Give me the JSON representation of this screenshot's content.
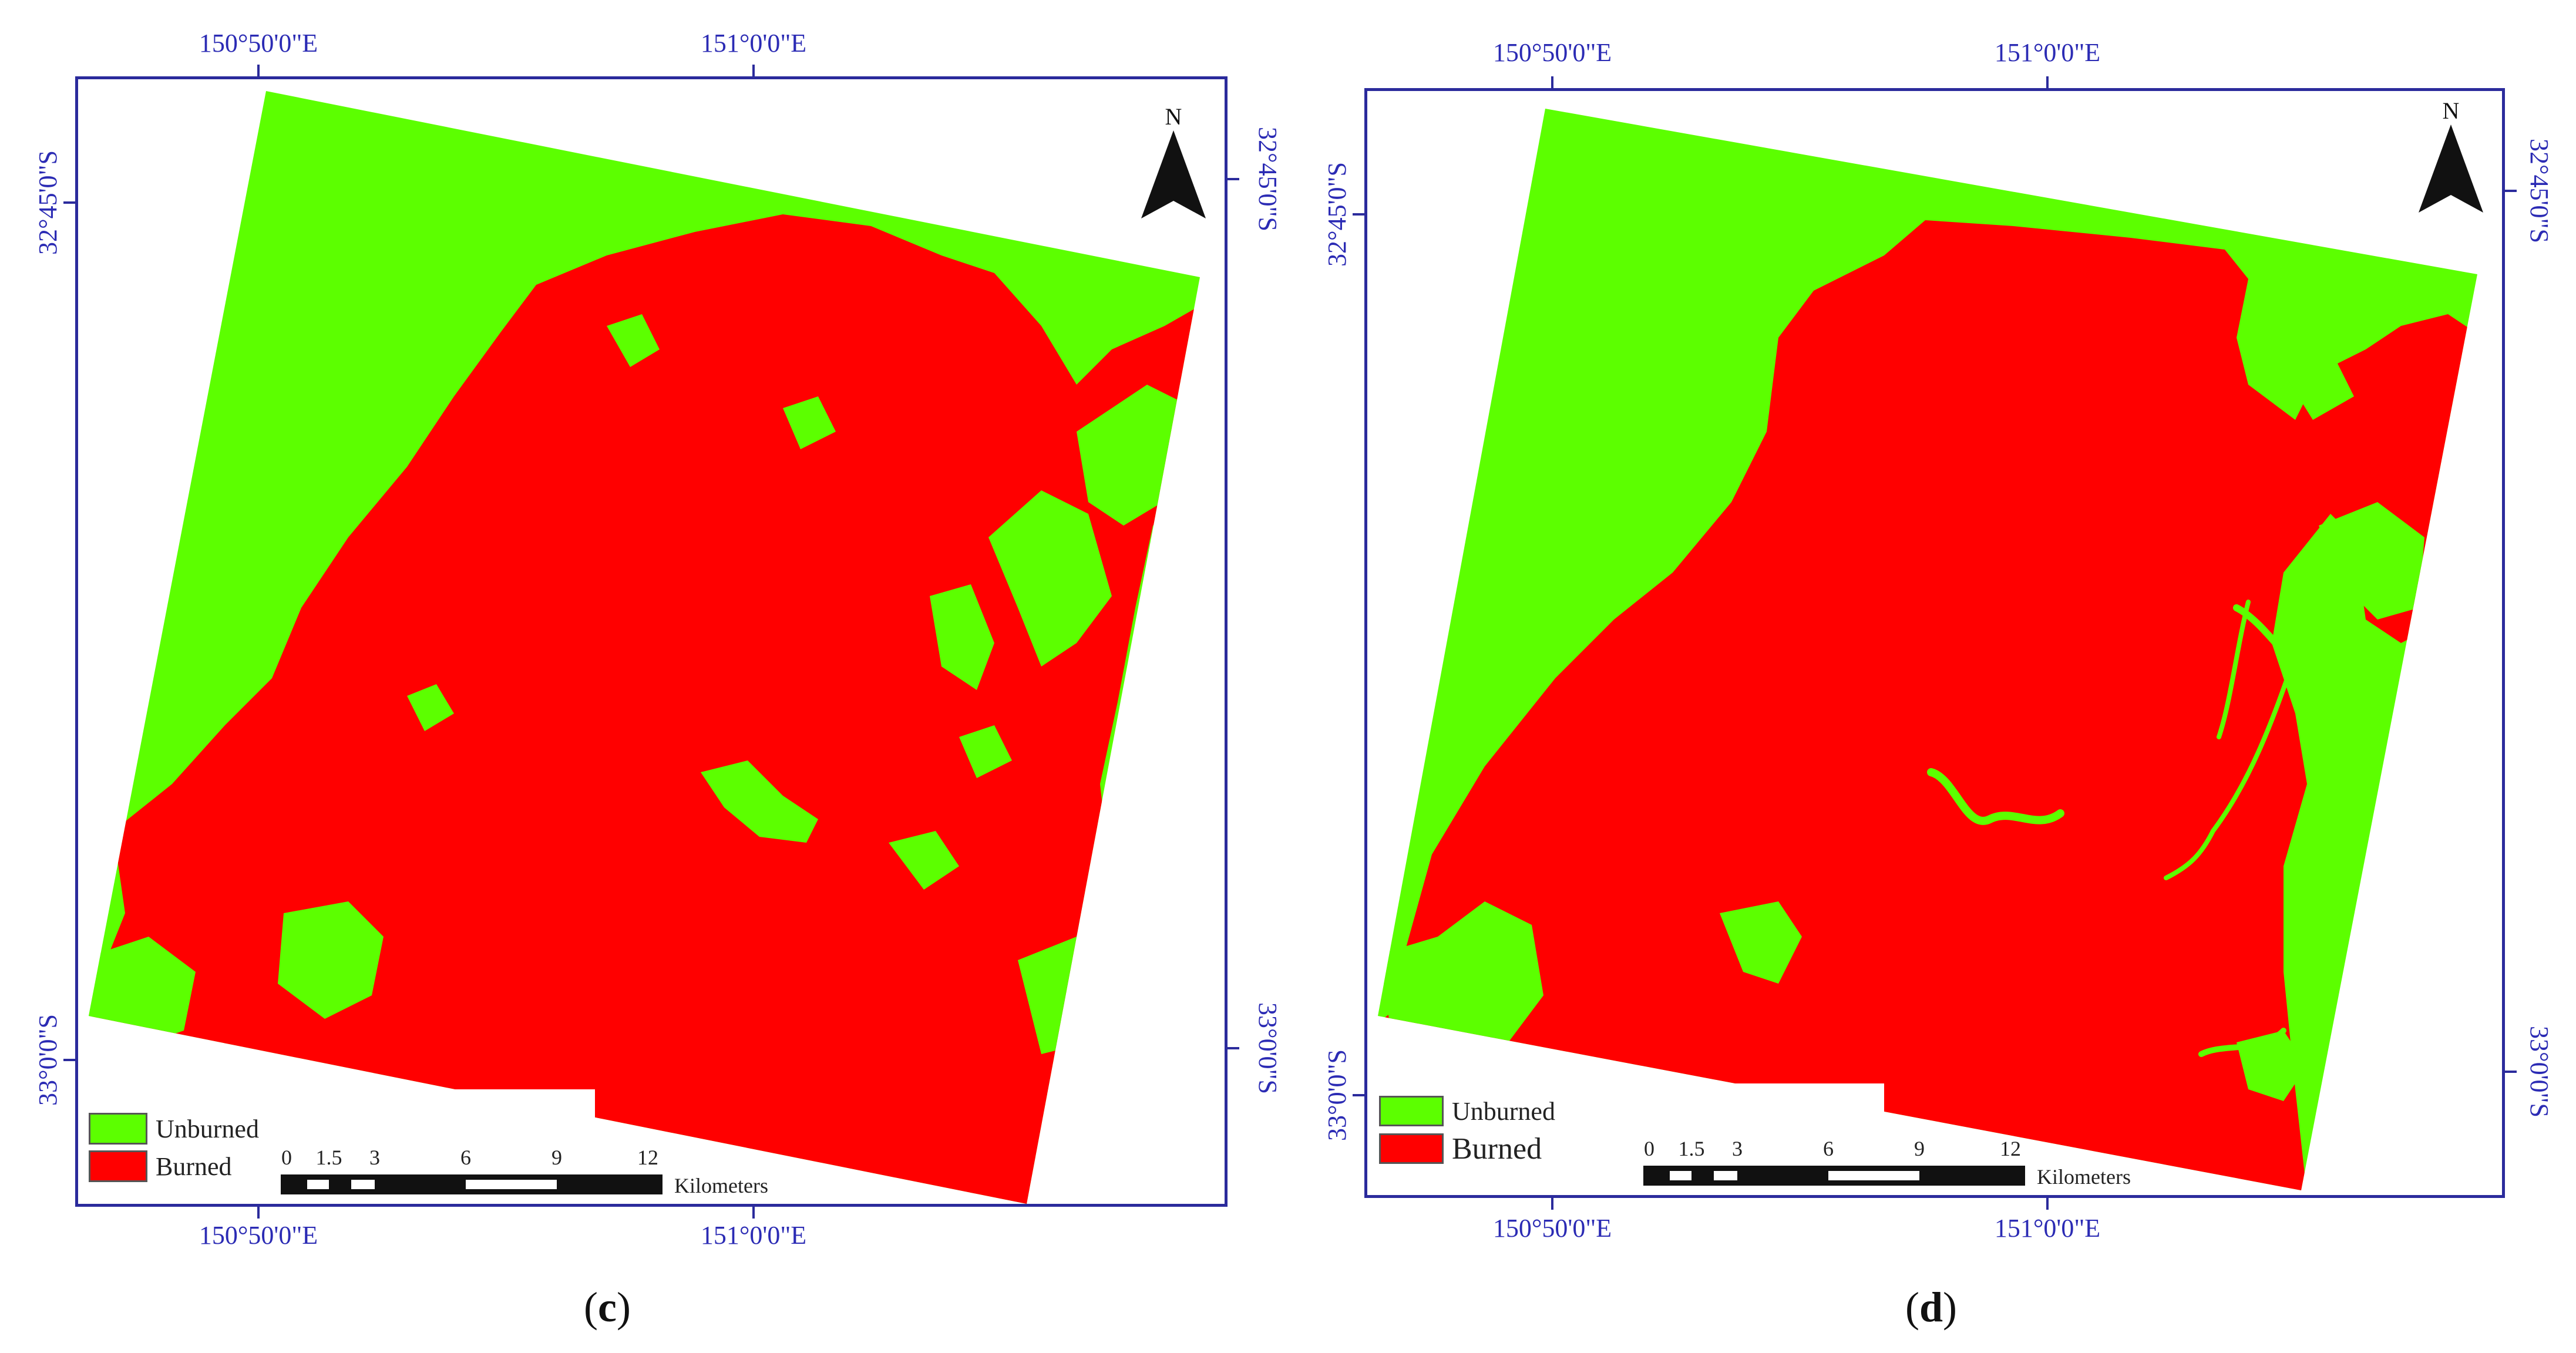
{
  "colors": {
    "unburned": "#5cff00",
    "burned": "#ff0000",
    "frame": "#2b2b9c",
    "coord_text": "#2b2bb4"
  },
  "panels": [
    {
      "id": "c",
      "caption_letter": "c",
      "coords": {
        "top_left": "150°50'0\"E",
        "top_right": "151°0'0\"E",
        "bottom_left": "150°50'0\"E",
        "bottom_right": "151°0'0\"E",
        "left_upper": "32°45'0\"S",
        "left_lower": "33°0'0\"S",
        "right_upper": "32°45'0\"S",
        "right_lower": "33°0'0\"S"
      },
      "north_label": "N",
      "legend": {
        "unburned": "Unburned",
        "burned": "Burned"
      },
      "scale": {
        "ticks": [
          "0",
          "1.5",
          "3",
          "6",
          "9",
          "12"
        ],
        "unit": "Kilometers"
      }
    },
    {
      "id": "d",
      "caption_letter": "d",
      "coords": {
        "top_left": "150°50'0\"E",
        "top_right": "151°0'0\"E",
        "bottom_left": "150°50'0\"E",
        "bottom_right": "151°0'0\"E",
        "left_upper": "32°45'0\"S",
        "left_lower": "33°0'0\"S",
        "right_upper": "32°45'0\"S",
        "right_lower": "33°0'0\"S"
      },
      "north_label": "N",
      "legend": {
        "unburned": "Unburned",
        "burned": "Burned"
      },
      "scale": {
        "ticks": [
          "0",
          "1.5",
          "3",
          "6",
          "9",
          "12"
        ],
        "unit": "Kilometers"
      }
    }
  ]
}
